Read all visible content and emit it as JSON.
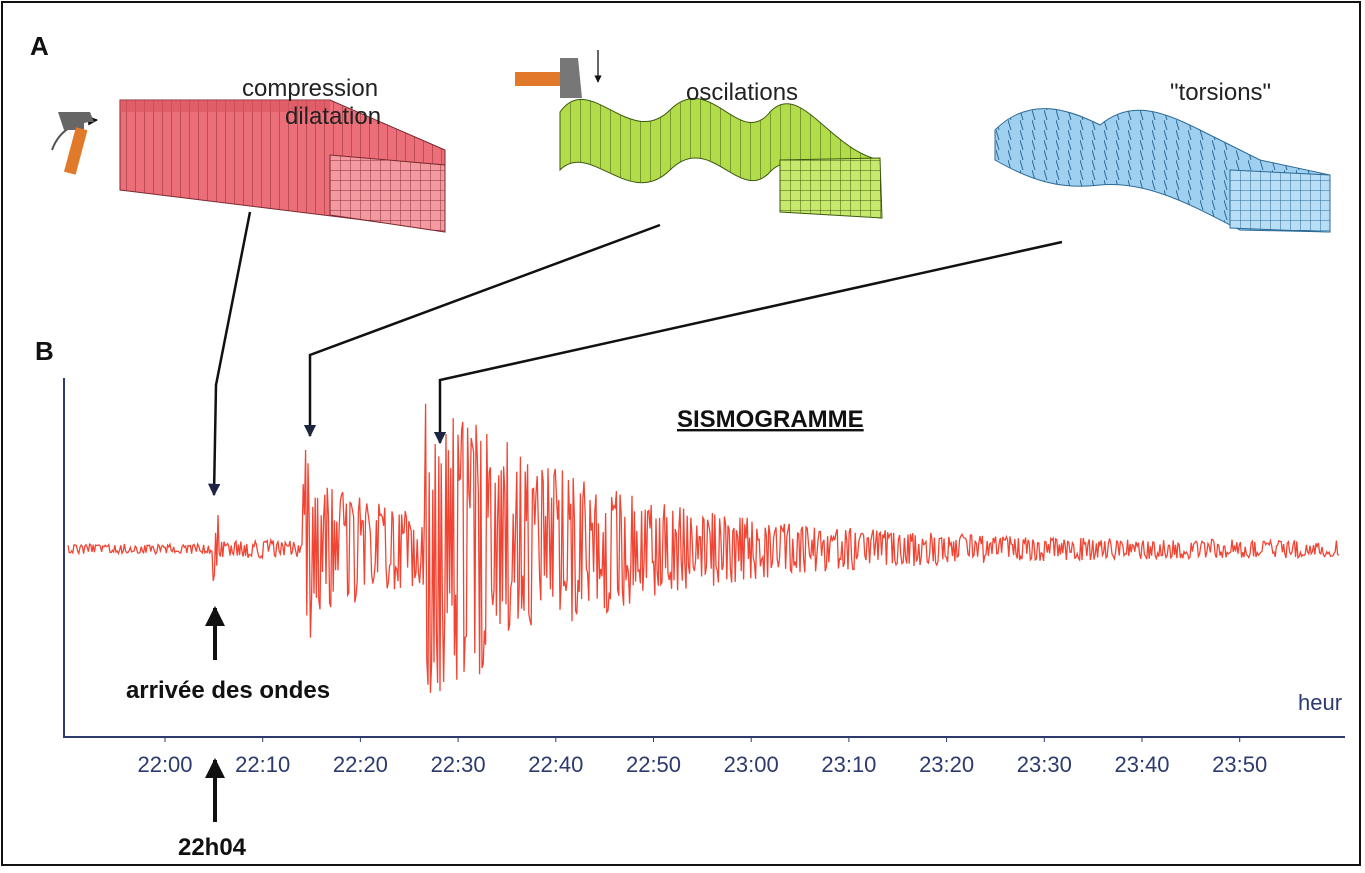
{
  "panel_a": {
    "label": "A",
    "waves": [
      {
        "label_lines": [
          "compression",
          "dilatation"
        ]
      },
      {
        "label_lines": [
          "oscilations"
        ]
      },
      {
        "label_lines": [
          "\"torsions\""
        ]
      }
    ]
  },
  "panel_b": {
    "label": "B",
    "title": "SISMOGRAMME",
    "arrival_label": "arrivée des ondes",
    "arrival_time": "22h04",
    "axis_unit": "heur",
    "time_ticks": [
      "22:00",
      "22:10",
      "22:20",
      "22:30",
      "22:40",
      "22:50",
      "23:00",
      "23:10",
      "23:20",
      "23:30",
      "23:40",
      "23:50"
    ]
  }
}
